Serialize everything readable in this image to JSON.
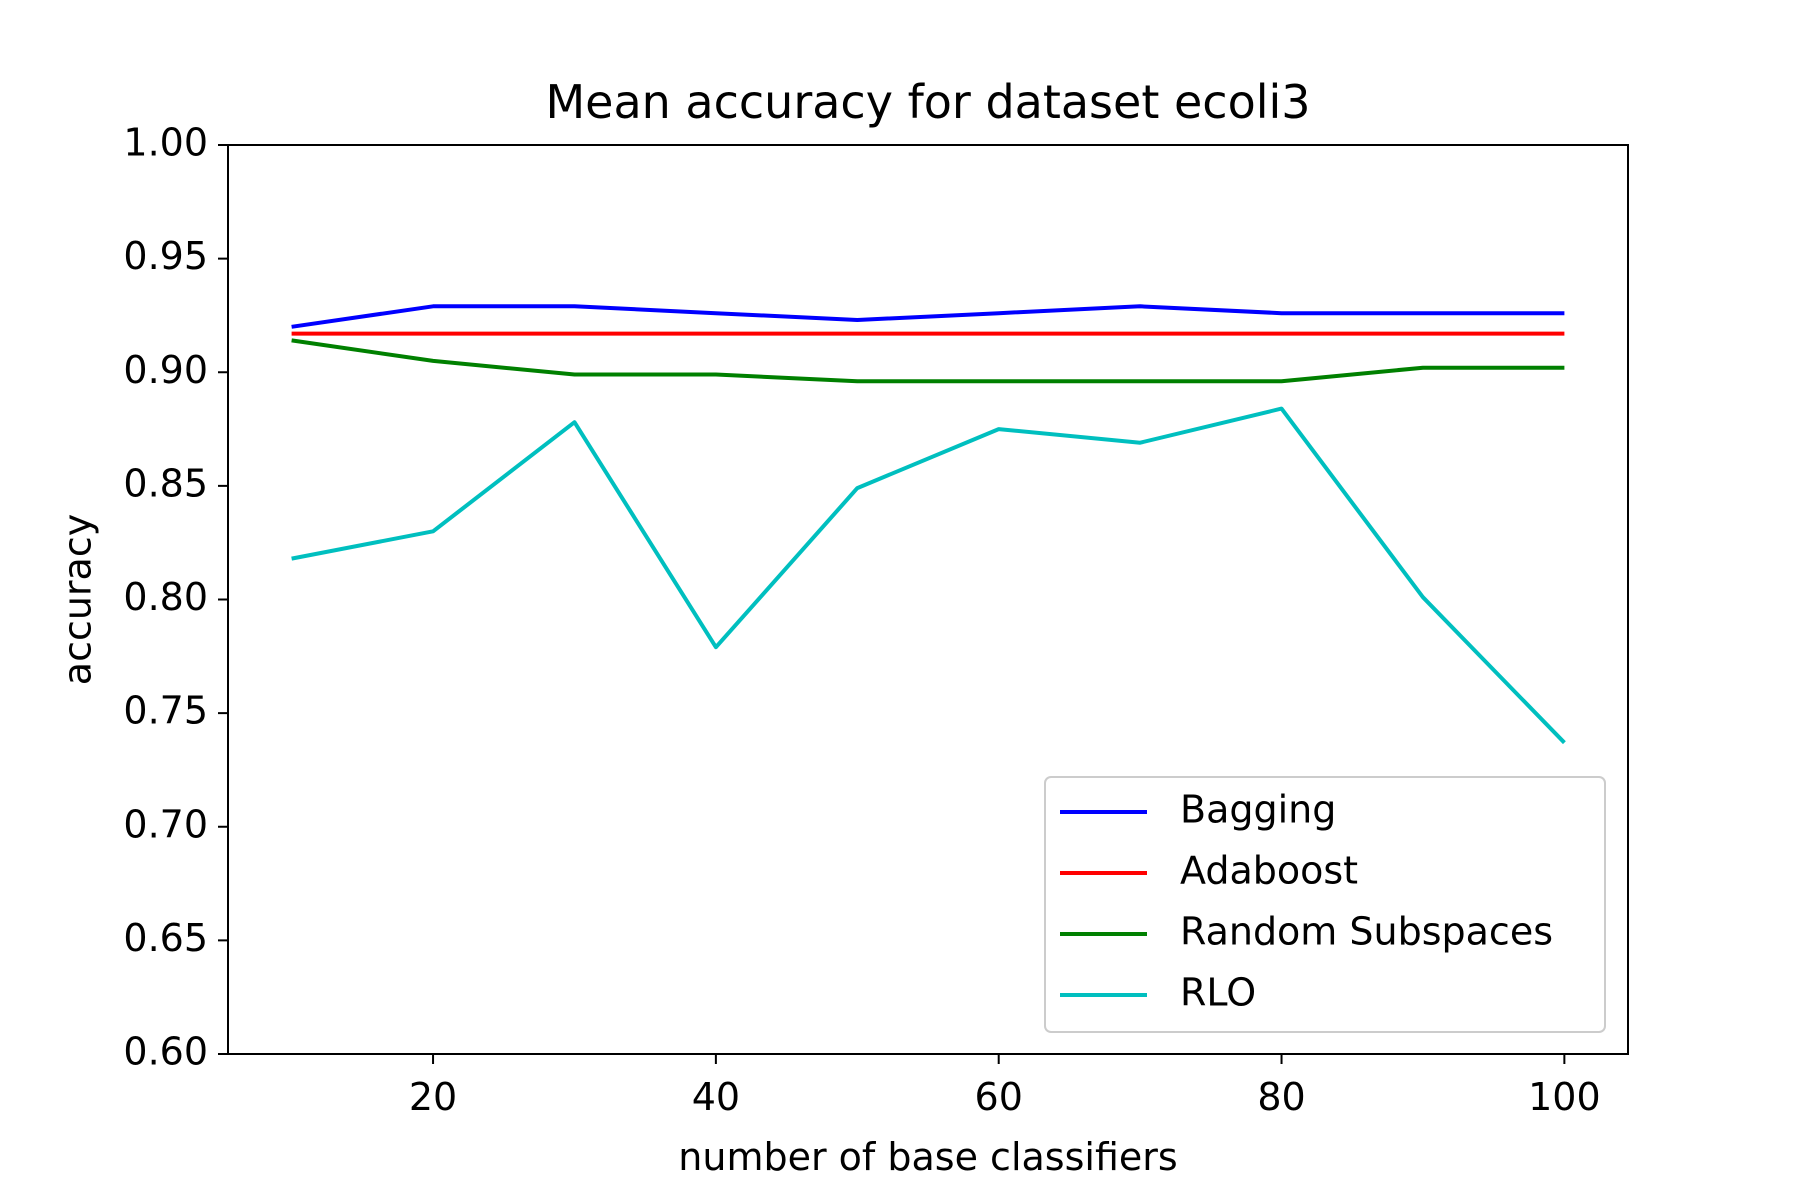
{
  "chart_data": {
    "type": "line",
    "title": "Mean accuracy for dataset ecoli3",
    "xlabel": "number of base classifiers",
    "ylabel": "accuracy",
    "xlim": [
      5.5,
      104.5
    ],
    "ylim": [
      0.6,
      1.0
    ],
    "x_ticks": [
      20,
      40,
      60,
      80,
      100
    ],
    "x_tick_labels": [
      "20",
      "40",
      "60",
      "80",
      "100"
    ],
    "y_ticks": [
      0.6,
      0.65,
      0.7,
      0.75,
      0.8,
      0.85,
      0.9,
      0.95,
      1.0
    ],
    "y_tick_labels": [
      "0.60",
      "0.65",
      "0.70",
      "0.75",
      "0.80",
      "0.85",
      "0.90",
      "0.95",
      "1.00"
    ],
    "grid": false,
    "legend_position": "lower-right",
    "x": [
      10,
      20,
      30,
      40,
      50,
      60,
      70,
      80,
      90,
      100
    ],
    "series": [
      {
        "name": "Bagging",
        "color": "#0000ff",
        "values": [
          0.92,
          0.929,
          0.929,
          0.926,
          0.923,
          0.926,
          0.929,
          0.926,
          0.926,
          0.926
        ]
      },
      {
        "name": "Adaboost",
        "color": "#ff0000",
        "values": [
          0.917,
          0.917,
          0.917,
          0.917,
          0.917,
          0.917,
          0.917,
          0.917,
          0.917,
          0.917
        ]
      },
      {
        "name": "Random Subspaces",
        "color": "#008000",
        "values": [
          0.914,
          0.905,
          0.899,
          0.899,
          0.896,
          0.896,
          0.896,
          0.896,
          0.902,
          0.902
        ]
      },
      {
        "name": "RLO",
        "color": "#00bfbf",
        "values": [
          0.818,
          0.83,
          0.878,
          0.779,
          0.849,
          0.875,
          0.869,
          0.884,
          0.801,
          0.737
        ]
      }
    ]
  }
}
